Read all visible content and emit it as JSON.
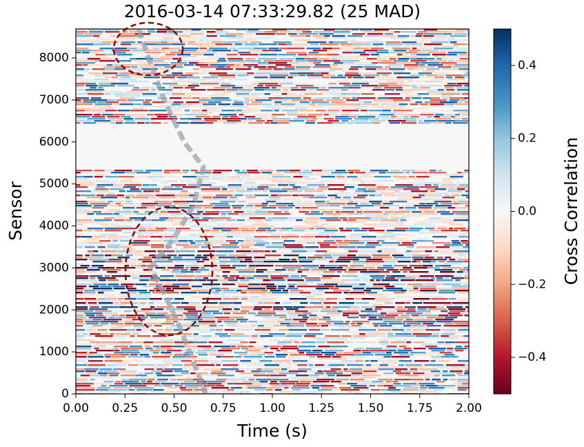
{
  "chart_data": {
    "type": "heatmap",
    "title": "2016-03-14 07:33:29.82 (25 MAD)",
    "x_label": "Time (s)",
    "y_label": "Sensor",
    "colorbar_label": "Cross Correlation",
    "colormap": "RdBu",
    "xlim": [
      0,
      2
    ],
    "xticks": [
      {
        "value": 0,
        "label": "0.00"
      },
      {
        "value": 0.25,
        "label": "0.25"
      },
      {
        "value": 0.5,
        "label": "0.50"
      },
      {
        "value": 0.75,
        "label": "0.75"
      },
      {
        "value": 1,
        "label": "1.00"
      },
      {
        "value": 1.25,
        "label": "1.25"
      },
      {
        "value": 1.5,
        "label": "1.50"
      },
      {
        "value": 1.75,
        "label": "1.75"
      },
      {
        "value": 2,
        "label": "2.00"
      }
    ],
    "ylim": [
      0,
      8690
    ],
    "yticks": [
      0,
      1000,
      2000,
      3000,
      4000,
      5000,
      6000,
      7000,
      8000
    ],
    "clim": [
      -0.5,
      0.5
    ],
    "cticks": [
      {
        "value": -0.4,
        "label": "−0.4"
      },
      {
        "value": -0.2,
        "label": "−0.2"
      },
      {
        "value": 0,
        "label": "0.0"
      },
      0.2,
      0.4
    ]
  }
}
